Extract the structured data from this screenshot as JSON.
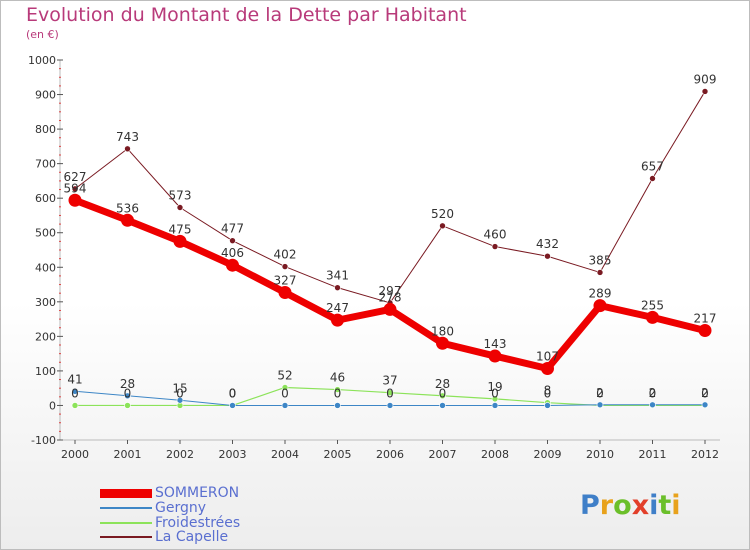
{
  "title": "Evolution du Montant de la Dette par Habitant",
  "subtitle": "(en €)",
  "logo": "Proxiti",
  "chart_data": {
    "type": "line",
    "title": "Evolution du Montant de la Dette par Habitant",
    "ylabel": "(en €)",
    "xlabel": "",
    "categories": [
      "2000",
      "2001",
      "2002",
      "2003",
      "2004",
      "2005",
      "2006",
      "2007",
      "2008",
      "2009",
      "2010",
      "2011",
      "2012"
    ],
    "ylim": [
      -100,
      1000
    ],
    "yticks": [
      -100,
      0,
      100,
      200,
      300,
      400,
      500,
      600,
      700,
      800,
      900,
      1000
    ],
    "grid": false,
    "legend_position": "bottom-left",
    "series": [
      {
        "name": "SOMMERON",
        "color": "#ee0000",
        "values": [
          594,
          536,
          475,
          406,
          327,
          247,
          278,
          180,
          143,
          107,
          289,
          255,
          217
        ]
      },
      {
        "name": "Gergny",
        "color": "#3d86c6",
        "values": [
          41,
          28,
          15,
          0,
          0,
          0,
          0,
          0,
          0,
          0,
          2,
          2,
          2
        ]
      },
      {
        "name": "Froidestrées",
        "color": "#8ce35a",
        "values": [
          0,
          0,
          0,
          0,
          52,
          46,
          37,
          28,
          19,
          8,
          0,
          0,
          0
        ]
      },
      {
        "name": "La Capelle",
        "color": "#7a1a22",
        "values": [
          627,
          743,
          573,
          477,
          402,
          341,
          297,
          520,
          460,
          432,
          385,
          657,
          909
        ]
      }
    ]
  }
}
